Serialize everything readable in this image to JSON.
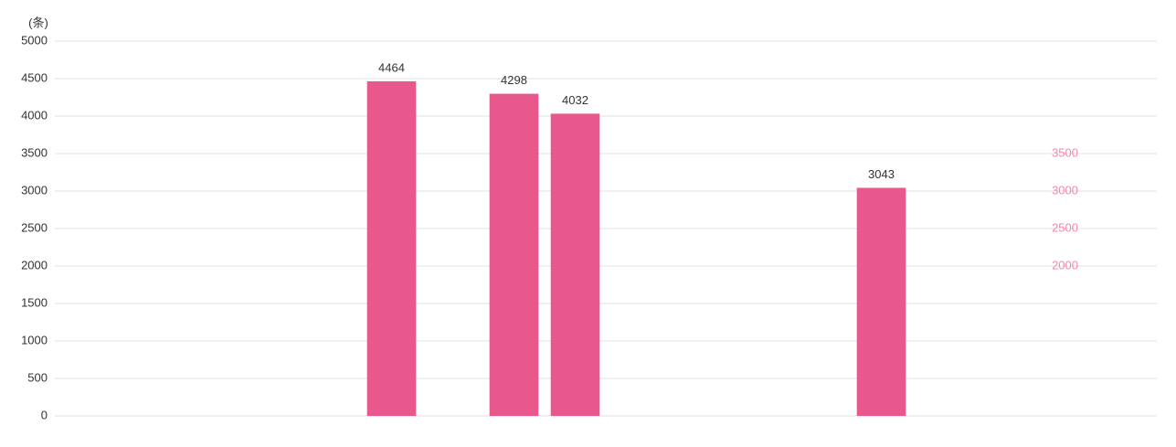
{
  "chart_data": {
    "type": "bar",
    "y_axis_title": "(条)",
    "categories": [
      null,
      null,
      null,
      null,
      null,
      null,
      null,
      null,
      null,
      null,
      null,
      null,
      null,
      null,
      null,
      null,
      null,
      null
    ],
    "values": [
      null,
      null,
      null,
      null,
      null,
      4464,
      null,
      4298,
      4032,
      null,
      null,
      null,
      null,
      3043,
      null,
      null,
      null,
      null
    ],
    "color": "#e8588c",
    "ylim": [
      0,
      5000
    ],
    "yticks": [
      0,
      500,
      1000,
      1500,
      2000,
      2500,
      3000,
      3500,
      4000,
      4500,
      5000
    ],
    "y2lim": [
      0,
      5000
    ],
    "y2ticks": [
      2000,
      2500,
      3000,
      3500
    ],
    "grid": true
  }
}
